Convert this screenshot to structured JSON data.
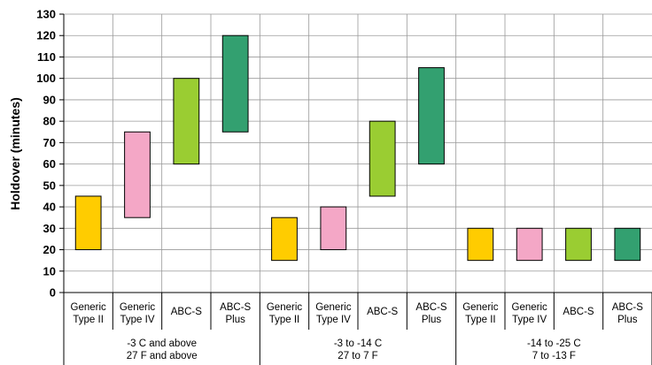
{
  "chart_data": {
    "type": "bar",
    "subtype": "floating-range",
    "ylabel": "Holdover (minutes)",
    "ylim": [
      0,
      130
    ],
    "ytick_step": 10,
    "grid": true,
    "categories": [
      [
        "Generic",
        "Type II"
      ],
      [
        "Generic",
        "Type IV"
      ],
      [
        "ABC-S"
      ],
      [
        "ABC-S",
        "Plus"
      ]
    ],
    "category_colors": [
      "#ffcc00",
      "#f4a7c6",
      "#9acd32",
      "#33a070"
    ],
    "groups": [
      {
        "label": [
          "-3 C and above",
          "27 F and above"
        ],
        "ranges": [
          [
            20,
            45
          ],
          [
            35,
            75
          ],
          [
            60,
            100
          ],
          [
            75,
            120
          ]
        ]
      },
      {
        "label": [
          "-3 to -14 C",
          "27 to 7 F"
        ],
        "ranges": [
          [
            15,
            35
          ],
          [
            20,
            40
          ],
          [
            45,
            80
          ],
          [
            60,
            105
          ]
        ]
      },
      {
        "label": [
          "-14 to -25 C",
          "7 to -13 F"
        ],
        "ranges": [
          [
            15,
            30
          ],
          [
            15,
            30
          ],
          [
            15,
            30
          ],
          [
            15,
            30
          ]
        ]
      }
    ]
  }
}
